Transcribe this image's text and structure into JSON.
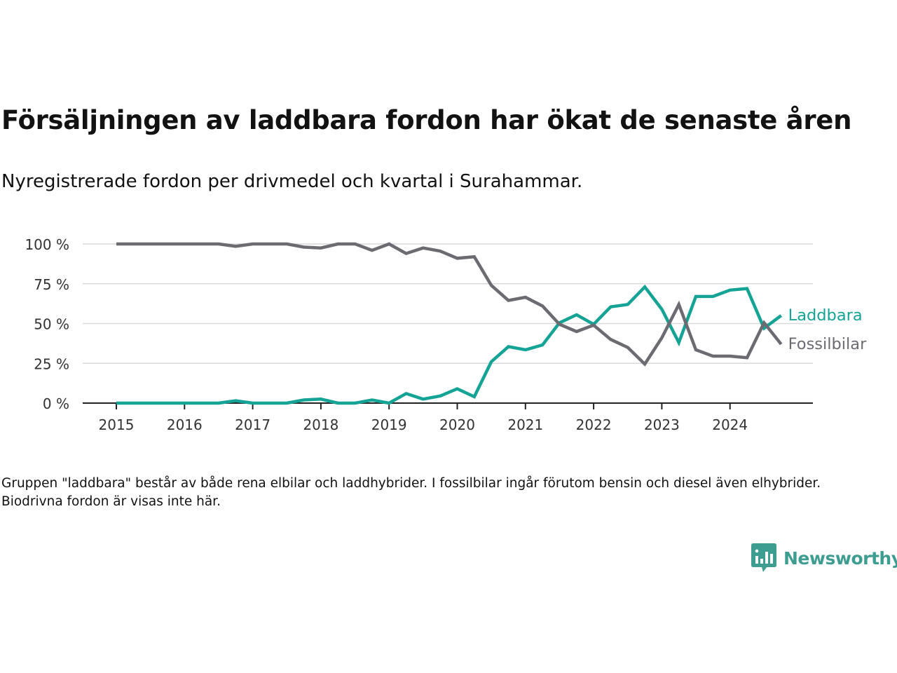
{
  "title": "Försäljningen av laddbara fordon har ökat de senaste åren",
  "subtitle": "Nyregistrerade fordon per drivmedel och kvartal i Surahammar.",
  "footnote": "Gruppen \"laddbara\" består av både rena elbilar och laddhybrider. I fossilbilar ingår förutom bensin och diesel även elhybrider. Biodrivna fordon är visas inte här.",
  "brand": {
    "name": "Newsworthy",
    "icon": "newsworthy-logo-icon",
    "color": "#3e9d91"
  },
  "chart_data": {
    "type": "line",
    "title": "Försäljningen av laddbara fordon har ökat de senaste åren",
    "subtitle": "Nyregistrerade fordon per drivmedel och kvartal i Surahammar.",
    "xlabel": "",
    "ylabel": "",
    "ylim": [
      0,
      100
    ],
    "xlim": [
      2015,
      2025
    ],
    "y_ticks": [
      {
        "value": 0,
        "label": "0 %"
      },
      {
        "value": 25,
        "label": "25 %"
      },
      {
        "value": 50,
        "label": "50 %"
      },
      {
        "value": 75,
        "label": "75 %"
      },
      {
        "value": 100,
        "label": "100 %"
      }
    ],
    "x_ticks": [
      {
        "value": 2015,
        "label": "2015"
      },
      {
        "value": 2016,
        "label": "2016"
      },
      {
        "value": 2017,
        "label": "2017"
      },
      {
        "value": 2018,
        "label": "2018"
      },
      {
        "value": 2019,
        "label": "2019"
      },
      {
        "value": 2020,
        "label": "2020"
      },
      {
        "value": 2021,
        "label": "2021"
      },
      {
        "value": 2022,
        "label": "2022"
      },
      {
        "value": 2023,
        "label": "2023"
      },
      {
        "value": 2024,
        "label": "2024"
      }
    ],
    "grid": true,
    "legend": "direct labels at line ends",
    "x": [
      "2015 Q1",
      "2015 Q2",
      "2015 Q3",
      "2015 Q4",
      "2016 Q1",
      "2016 Q2",
      "2016 Q3",
      "2016 Q4",
      "2017 Q1",
      "2017 Q2",
      "2017 Q3",
      "2017 Q4",
      "2018 Q1",
      "2018 Q2",
      "2018 Q3",
      "2018 Q4",
      "2019 Q1",
      "2019 Q2",
      "2019 Q3",
      "2019 Q4",
      "2020 Q1",
      "2020 Q2",
      "2020 Q3",
      "2020 Q4",
      "2021 Q1",
      "2021 Q2",
      "2021 Q3",
      "2021 Q4",
      "2022 Q1",
      "2022 Q2",
      "2022 Q3",
      "2022 Q4",
      "2023 Q1",
      "2023 Q2",
      "2023 Q3",
      "2023 Q4",
      "2024 Q1",
      "2024 Q2",
      "2024 Q3",
      "2024 Q4"
    ],
    "series": [
      {
        "name": "Laddbara",
        "color": "#14a395",
        "values": [
          0,
          0,
          0,
          0,
          0,
          0,
          0,
          1.5,
          0,
          0,
          0,
          2,
          2.5,
          0,
          0,
          2,
          0,
          6,
          2.5,
          4.5,
          9,
          4,
          26,
          35.5,
          33.5,
          36.5,
          50.5,
          55.5,
          49.5,
          60.5,
          62,
          73,
          59,
          38,
          67,
          67,
          71,
          72,
          47,
          55
        ]
      },
      {
        "name": "Fossilbilar",
        "color": "#6c6b71",
        "values": [
          100,
          100,
          100,
          100,
          100,
          100,
          100,
          98.5,
          100,
          100,
          100,
          98,
          97.5,
          100,
          100,
          96,
          100,
          94,
          97.5,
          95.5,
          91,
          92,
          74,
          64.5,
          66.5,
          61,
          49.5,
          45,
          49,
          40,
          35,
          24.5,
          41,
          62,
          33.5,
          29.5,
          29.5,
          28.5,
          50.5,
          37
        ]
      }
    ]
  }
}
